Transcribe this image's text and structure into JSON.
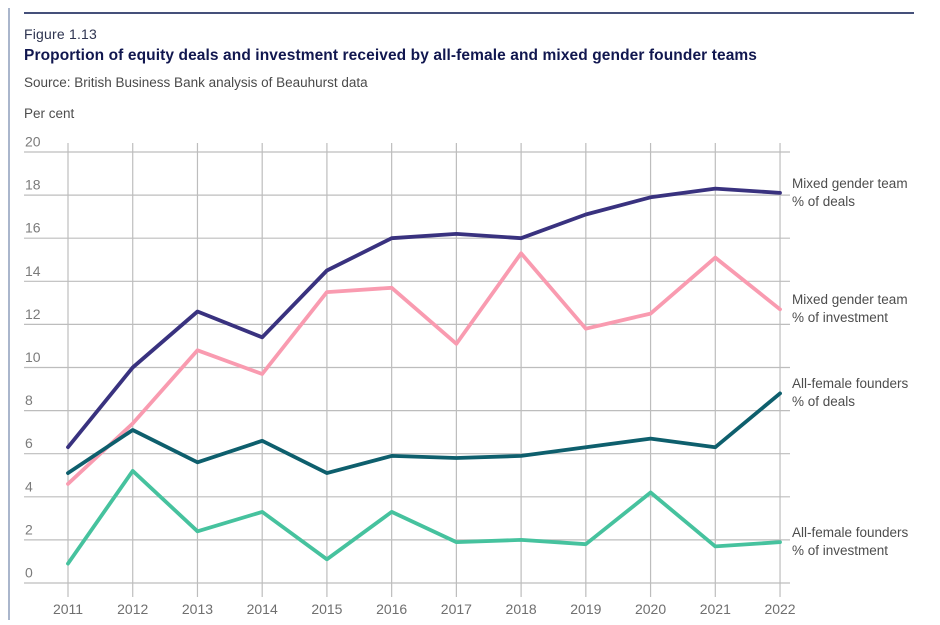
{
  "figure": {
    "label": "Figure 1.13",
    "title": "Proportion of equity deals and investment received by all-female and mixed gender founder teams",
    "source": "Source: British Business Bank analysis of Beauhurst data"
  },
  "chart_data": {
    "type": "line",
    "unit_label": "Per cent",
    "x": [
      "2011",
      "2012",
      "2013",
      "2014",
      "2015",
      "2016",
      "2017",
      "2018",
      "2019",
      "2020",
      "2021",
      "2022"
    ],
    "ylim": [
      0,
      20
    ],
    "ytick_step": 2,
    "grid": true,
    "legend_position": "right-annotations",
    "series": [
      {
        "name": "Mixed gender team % of deals",
        "label": [
          "Mixed gender team",
          "% of deals"
        ],
        "color": "#39327F",
        "values": [
          6.3,
          10.0,
          12.6,
          11.4,
          14.5,
          16.0,
          16.2,
          16.0,
          17.1,
          17.9,
          18.3,
          18.1
        ]
      },
      {
        "name": "Mixed gender team % of investment",
        "label": [
          "Mixed gender team",
          "% of investment"
        ],
        "color": "#F99BB0",
        "values": [
          4.6,
          7.4,
          10.8,
          9.7,
          13.5,
          13.7,
          11.1,
          15.3,
          11.8,
          12.5,
          15.1,
          12.7
        ]
      },
      {
        "name": "All-female founders % of deals",
        "label": [
          "All-female founders",
          "% of deals"
        ],
        "color": "#0E5F6D",
        "values": [
          5.1,
          7.1,
          5.6,
          6.6,
          5.1,
          5.9,
          5.8,
          5.9,
          6.3,
          6.7,
          6.3,
          8.8
        ]
      },
      {
        "name": "All-female founders % of investment",
        "label": [
          "All-female founders",
          "% of investment"
        ],
        "color": "#46C29E",
        "values": [
          0.9,
          5.2,
          2.4,
          3.3,
          1.1,
          3.3,
          1.9,
          2.0,
          1.8,
          4.2,
          1.7,
          1.9
        ]
      }
    ]
  },
  "style_colors": {
    "gridline": "#bdbdbd",
    "ytick_label": "#7b7b7b",
    "xtick_label": "#6f6f6f",
    "header_rule": "#45507a",
    "edge_rule": "#aab6cc"
  }
}
